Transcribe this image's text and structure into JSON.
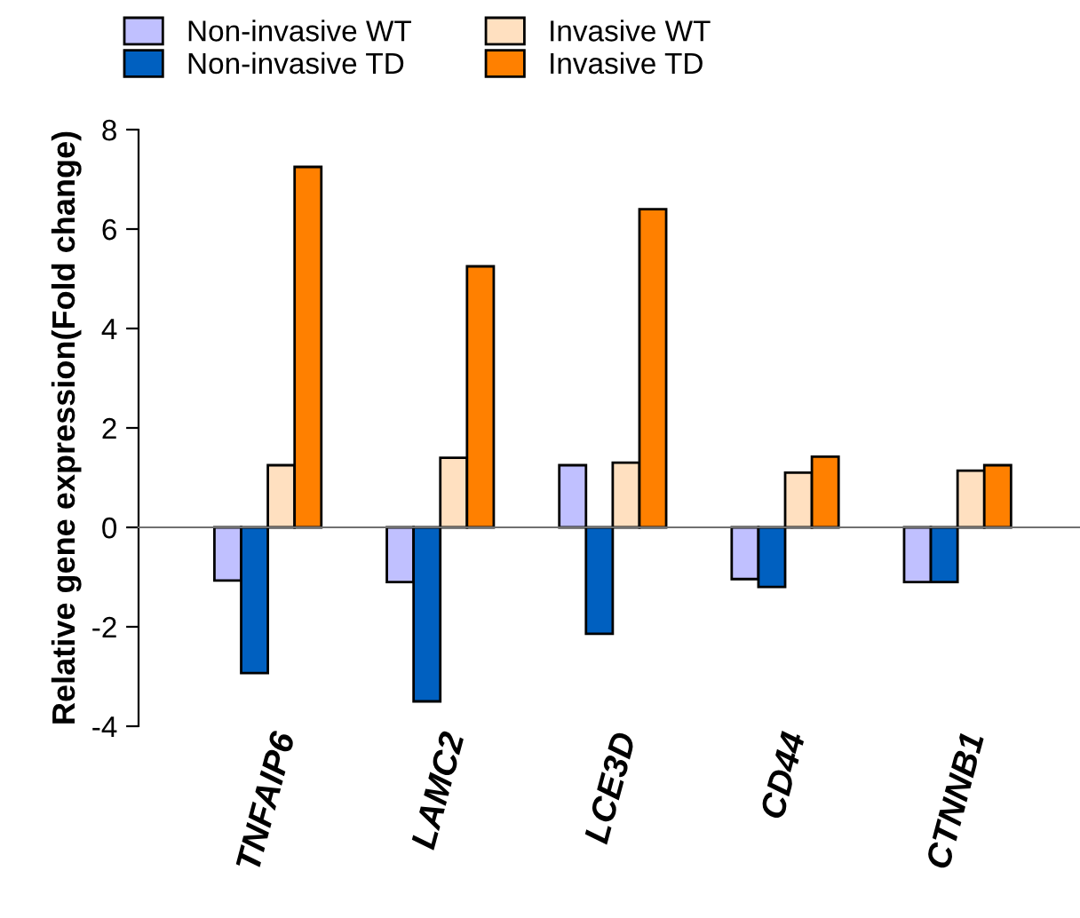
{
  "chart_data": {
    "type": "bar",
    "ylabel": "Relative gene expression(Fold change)",
    "categories": [
      "TNFAIP6",
      "LAMC2",
      "LCE3D",
      "CD44",
      "CTNNB1"
    ],
    "series": [
      {
        "name": "Non-invasive WT",
        "color": "#c0c0ff",
        "values": [
          -1.07,
          -1.1,
          1.25,
          -1.04,
          -1.1
        ]
      },
      {
        "name": "Non-invasive TD",
        "color": "#0060c0",
        "values": [
          -2.93,
          -3.5,
          -2.14,
          -1.2,
          -1.1
        ]
      },
      {
        "name": "Invasive WT",
        "color": "#ffe0c0",
        "values": [
          1.25,
          1.4,
          1.3,
          1.1,
          1.14
        ]
      },
      {
        "name": "Invasive TD",
        "color": "#ff8000",
        "values": [
          7.25,
          5.25,
          6.4,
          1.42,
          1.25
        ]
      }
    ],
    "ylim": [
      -4,
      8
    ],
    "yticks": [
      -4,
      -2,
      0,
      2,
      4,
      6,
      8
    ],
    "legend": "top"
  }
}
